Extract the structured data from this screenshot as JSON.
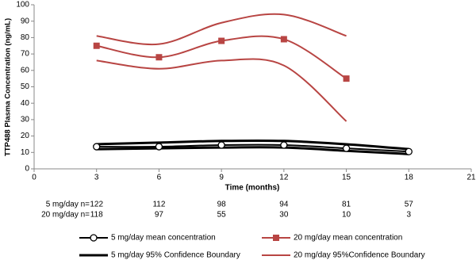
{
  "chart_data": {
    "type": "line",
    "y_label": "TTP488 Plasma Concentration (ng/mL)",
    "x_label": "Time (months)",
    "x": [
      3,
      6,
      9,
      12,
      15,
      18
    ],
    "xlim": [
      0,
      21
    ],
    "xticks": [
      0,
      3,
      6,
      9,
      12,
      15,
      18,
      21
    ],
    "ylim": [
      0,
      100
    ],
    "yticks": [
      0,
      10,
      20,
      30,
      40,
      50,
      60,
      70,
      80,
      90,
      100
    ],
    "series": [
      {
        "name": "5 mg/day mean concentration",
        "color": "#000000",
        "marker": "circle",
        "values": [
          13.5,
          13.5,
          14.5,
          14.5,
          12.5,
          10.5
        ]
      },
      {
        "name": "20 mg/day mean concentration",
        "color": "#b84543",
        "marker": "square",
        "values": [
          75,
          68,
          78,
          79,
          55,
          null
        ]
      },
      {
        "name": "5 mg/day 95% Confidence Boundary",
        "color": "#000000",
        "marker": "none",
        "upper": [
          15,
          16,
          17,
          17,
          15,
          12
        ],
        "lower": [
          12,
          12.5,
          13,
          13,
          11,
          9
        ]
      },
      {
        "name": "20 mg/day 95%Confidence Boundary",
        "color": "#b84543",
        "marker": "none",
        "upper": [
          81,
          76,
          89,
          94,
          81,
          null
        ],
        "lower": [
          66,
          61,
          66,
          63,
          29,
          null
        ]
      }
    ],
    "n_table": [
      {
        "label": "5 mg/day n=",
        "values": [
          122,
          112,
          98,
          94,
          81,
          57
        ]
      },
      {
        "label": "20 mg/day n=",
        "values": [
          118,
          97,
          55,
          30,
          10,
          3
        ]
      }
    ]
  }
}
